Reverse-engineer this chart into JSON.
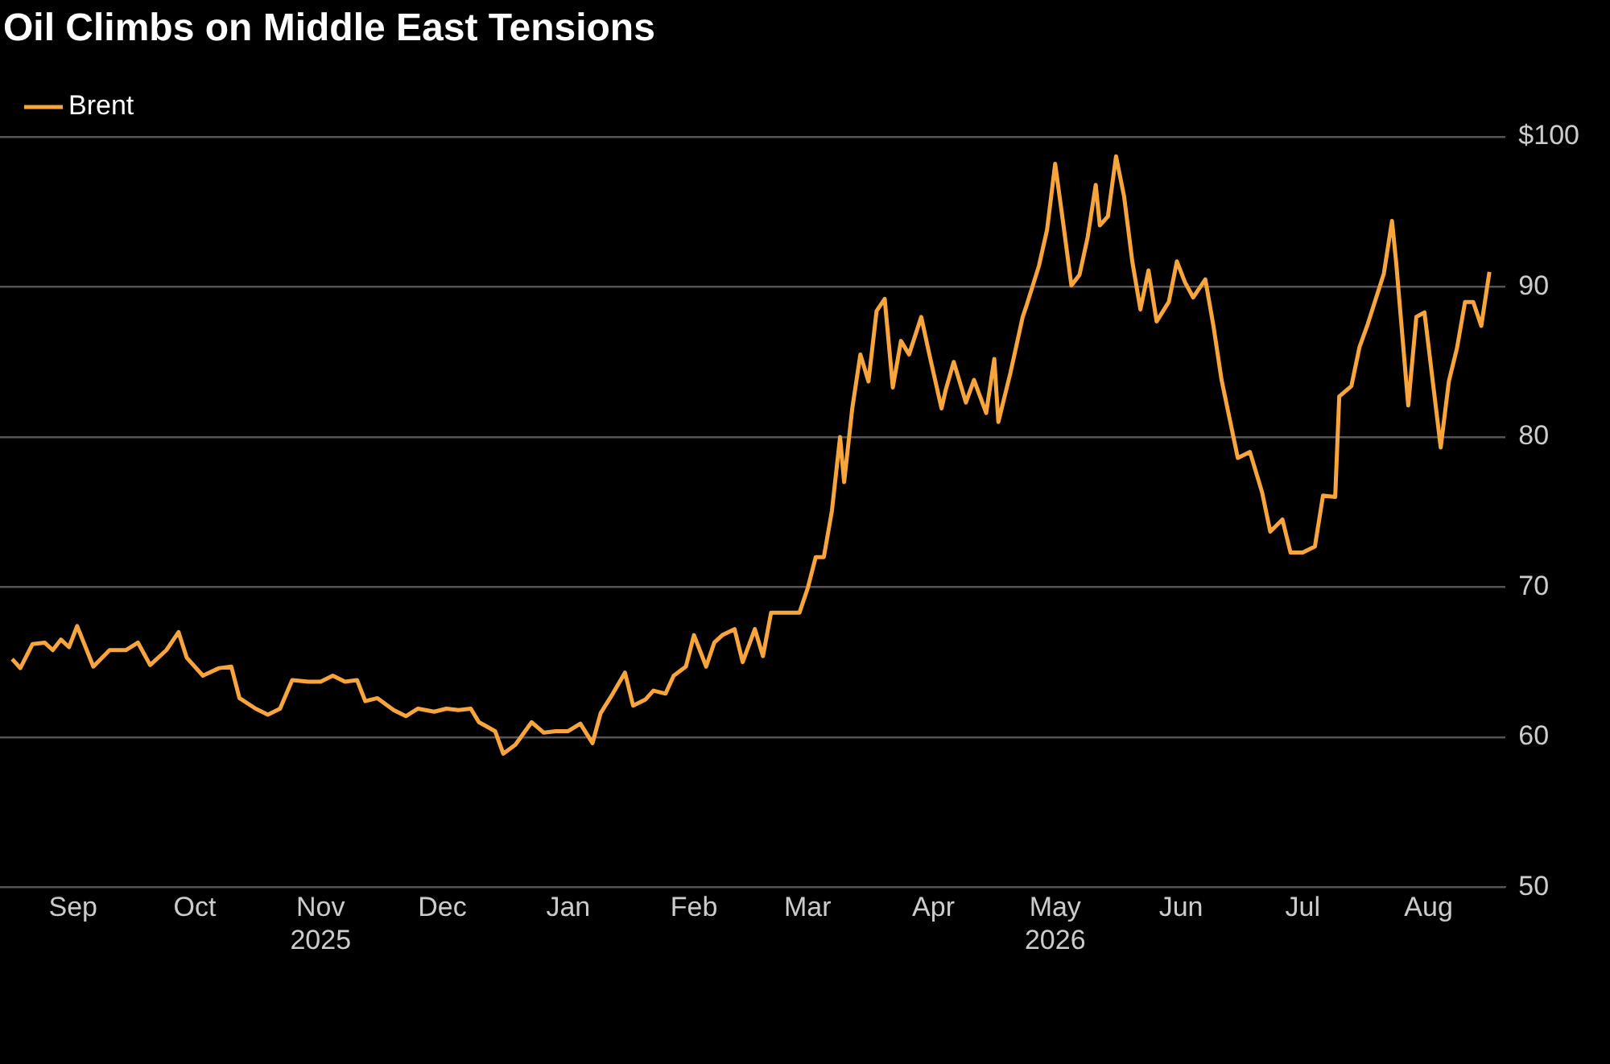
{
  "chart_data": {
    "type": "line",
    "title": "Oil Climbs on Middle East Tensions",
    "x": [
      "2025-08-17",
      "2025-08-19",
      "2025-08-22",
      "2025-08-25",
      "2025-08-27",
      "2025-08-29",
      "2025-08-31",
      "2025-09-02",
      "2025-09-06",
      "2025-09-10",
      "2025-09-14",
      "2025-09-17",
      "2025-09-20",
      "2025-09-24",
      "2025-09-27",
      "2025-09-29",
      "2025-10-03",
      "2025-10-07",
      "2025-10-10",
      "2025-10-12",
      "2025-10-16",
      "2025-10-19",
      "2025-10-22",
      "2025-10-25",
      "2025-10-29",
      "2025-11-01",
      "2025-11-04",
      "2025-11-07",
      "2025-11-10",
      "2025-11-12",
      "2025-11-15",
      "2025-11-19",
      "2025-11-22",
      "2025-11-25",
      "2025-11-29",
      "2025-12-02",
      "2025-12-05",
      "2025-12-08",
      "2025-12-10",
      "2025-12-14",
      "2025-12-16",
      "2025-12-19",
      "2025-12-23",
      "2025-12-26",
      "2025-12-29",
      "2026-01-01",
      "2026-01-04",
      "2026-01-07",
      "2026-01-09",
      "2026-01-12",
      "2026-01-15",
      "2026-01-17",
      "2026-01-20",
      "2026-01-22",
      "2026-01-25",
      "2026-01-27",
      "2026-01-30",
      "2026-02-01",
      "2026-02-04",
      "2026-02-06",
      "2026-02-08",
      "2026-02-11",
      "2026-02-13",
      "2026-02-16",
      "2026-02-18",
      "2026-02-20",
      "2026-02-23",
      "2026-02-27",
      "2026-03-01",
      "2026-03-03",
      "2026-03-05",
      "2026-03-07",
      "2026-03-09",
      "2026-03-10",
      "2026-03-12",
      "2026-03-14",
      "2026-03-16",
      "2026-03-18",
      "2026-03-20",
      "2026-03-22",
      "2026-03-24",
      "2026-03-26",
      "2026-03-29",
      "2026-03-31",
      "2026-04-03",
      "2026-04-04",
      "2026-04-06",
      "2026-04-09",
      "2026-04-11",
      "2026-04-14",
      "2026-04-16",
      "2026-04-17",
      "2026-04-20",
      "2026-04-23",
      "2026-04-24",
      "2026-04-27",
      "2026-04-29",
      "2026-05-01",
      "2026-05-03",
      "2026-05-05",
      "2026-05-07",
      "2026-05-09",
      "2026-05-11",
      "2026-05-12",
      "2026-05-14",
      "2026-05-16",
      "2026-05-18",
      "2026-05-20",
      "2026-05-22",
      "2026-05-24",
      "2026-05-26",
      "2026-05-29",
      "2026-05-31",
      "2026-06-02",
      "2026-06-04",
      "2026-06-07",
      "2026-06-09",
      "2026-06-11",
      "2026-06-15",
      "2026-06-18",
      "2026-06-21",
      "2026-06-23",
      "2026-06-26",
      "2026-06-28",
      "2026-07-01",
      "2026-07-04",
      "2026-07-06",
      "2026-07-09",
      "2026-07-10",
      "2026-07-13",
      "2026-07-15",
      "2026-07-17",
      "2026-07-21",
      "2026-07-23",
      "2026-07-24",
      "2026-07-27",
      "2026-07-29",
      "2026-07-31",
      "2026-08-04",
      "2026-08-06",
      "2026-08-08",
      "2026-08-10",
      "2026-08-12",
      "2026-08-14",
      "2026-08-16"
    ],
    "series": [
      {
        "name": "Brent",
        "color": "#f9a53b",
        "values": [
          65.2,
          64.6,
          66.2,
          66.3,
          65.8,
          66.5,
          66.0,
          67.4,
          64.7,
          65.8,
          65.8,
          66.3,
          64.8,
          65.8,
          67.0,
          65.3,
          64.1,
          64.6,
          64.7,
          62.6,
          61.9,
          61.5,
          61.9,
          63.8,
          63.7,
          63.7,
          64.1,
          63.7,
          63.8,
          62.4,
          62.6,
          61.8,
          61.4,
          61.9,
          61.7,
          61.9,
          61.8,
          61.9,
          61.0,
          60.4,
          58.9,
          59.5,
          61.0,
          60.3,
          60.4,
          60.4,
          60.9,
          59.6,
          61.6,
          62.9,
          64.3,
          62.1,
          62.5,
          63.1,
          62.9,
          64.1,
          64.7,
          66.8,
          64.7,
          66.3,
          66.8,
          67.2,
          65.0,
          67.2,
          65.4,
          68.3,
          68.3,
          68.3,
          69.9,
          72.0,
          72.0,
          75.1,
          80.0,
          77.0,
          81.9,
          85.5,
          83.7,
          88.4,
          89.2,
          83.3,
          86.4,
          85.5,
          88.0,
          85.5,
          81.9,
          83.1,
          85.0,
          82.3,
          83.8,
          81.6,
          85.2,
          81.0,
          84.3,
          88.0,
          88.8,
          91.4,
          93.8,
          98.2,
          94.2,
          90.1,
          90.8,
          93.3,
          96.8,
          94.1,
          94.7,
          98.7,
          96.0,
          91.7,
          88.5,
          91.1,
          87.7,
          89.0,
          91.7,
          90.3,
          89.3,
          90.5,
          87.4,
          83.8,
          78.6,
          79.0,
          76.3,
          73.7,
          74.5,
          72.3,
          72.3,
          72.7,
          76.1,
          76.0,
          82.7,
          83.4,
          86.0,
          87.5,
          90.9,
          94.4,
          91.7,
          82.1,
          88.0,
          88.3,
          79.3,
          83.7,
          85.9,
          89.0,
          89.0,
          87.4,
          91.0
        ]
      }
    ],
    "xlim": [
      "2025-08-14",
      "2026-08-20"
    ],
    "xticks": [
      {
        "value": "2025-09-01",
        "label": "Sep"
      },
      {
        "value": "2025-10-01",
        "label": "Oct"
      },
      {
        "value": "2025-11-01",
        "label": "Nov\n2025"
      },
      {
        "value": "2025-12-01",
        "label": "Dec"
      },
      {
        "value": "2026-01-01",
        "label": "Jan"
      },
      {
        "value": "2026-02-01",
        "label": "Feb"
      },
      {
        "value": "2026-03-01",
        "label": "Mar"
      },
      {
        "value": "2026-04-01",
        "label": "Apr"
      },
      {
        "value": "2026-05-01",
        "label": "May\n2026"
      },
      {
        "value": "2026-06-01",
        "label": "Jun"
      },
      {
        "value": "2026-07-01",
        "label": "Jul"
      },
      {
        "value": "2026-08-01",
        "label": "Aug"
      }
    ],
    "ylim": [
      50,
      100
    ],
    "yticks": [
      {
        "value": 100,
        "label": "$100"
      },
      90,
      80,
      70,
      60,
      50
    ],
    "grid": "y",
    "legend": "top left",
    "line_style": "solid",
    "marker": "none"
  }
}
